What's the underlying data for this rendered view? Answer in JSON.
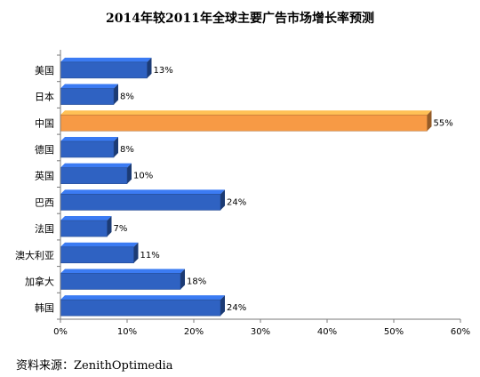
{
  "chart_data": {
    "type": "bar",
    "orientation": "horizontal",
    "title": "2014年较2011年全球主要广告市场增长率预测",
    "categories": [
      "美国",
      "日本",
      "中国",
      "德国",
      "英国",
      "巴西",
      "法国",
      "澳大利亚",
      "加拿大",
      "韩国"
    ],
    "values": [
      13,
      8,
      55,
      8,
      10,
      24,
      7,
      11,
      18,
      24
    ],
    "value_labels": [
      "13%",
      "8%",
      "55%",
      "8%",
      "10%",
      "24%",
      "7%",
      "11%",
      "18%",
      "24%"
    ],
    "highlight_index": 2,
    "xlim": [
      0,
      60
    ],
    "xticks": [
      0,
      10,
      20,
      30,
      40,
      50,
      60
    ],
    "xtick_labels": [
      "0%",
      "10%",
      "20%",
      "30%",
      "40%",
      "50%",
      "60%"
    ],
    "grid": false,
    "colors": {
      "bar": "#2f62c2",
      "bar_highlight": "#f79a45",
      "axis": "#7a7a7a"
    }
  },
  "footer": {
    "source": "资料来源：ZenithOptimedia"
  }
}
